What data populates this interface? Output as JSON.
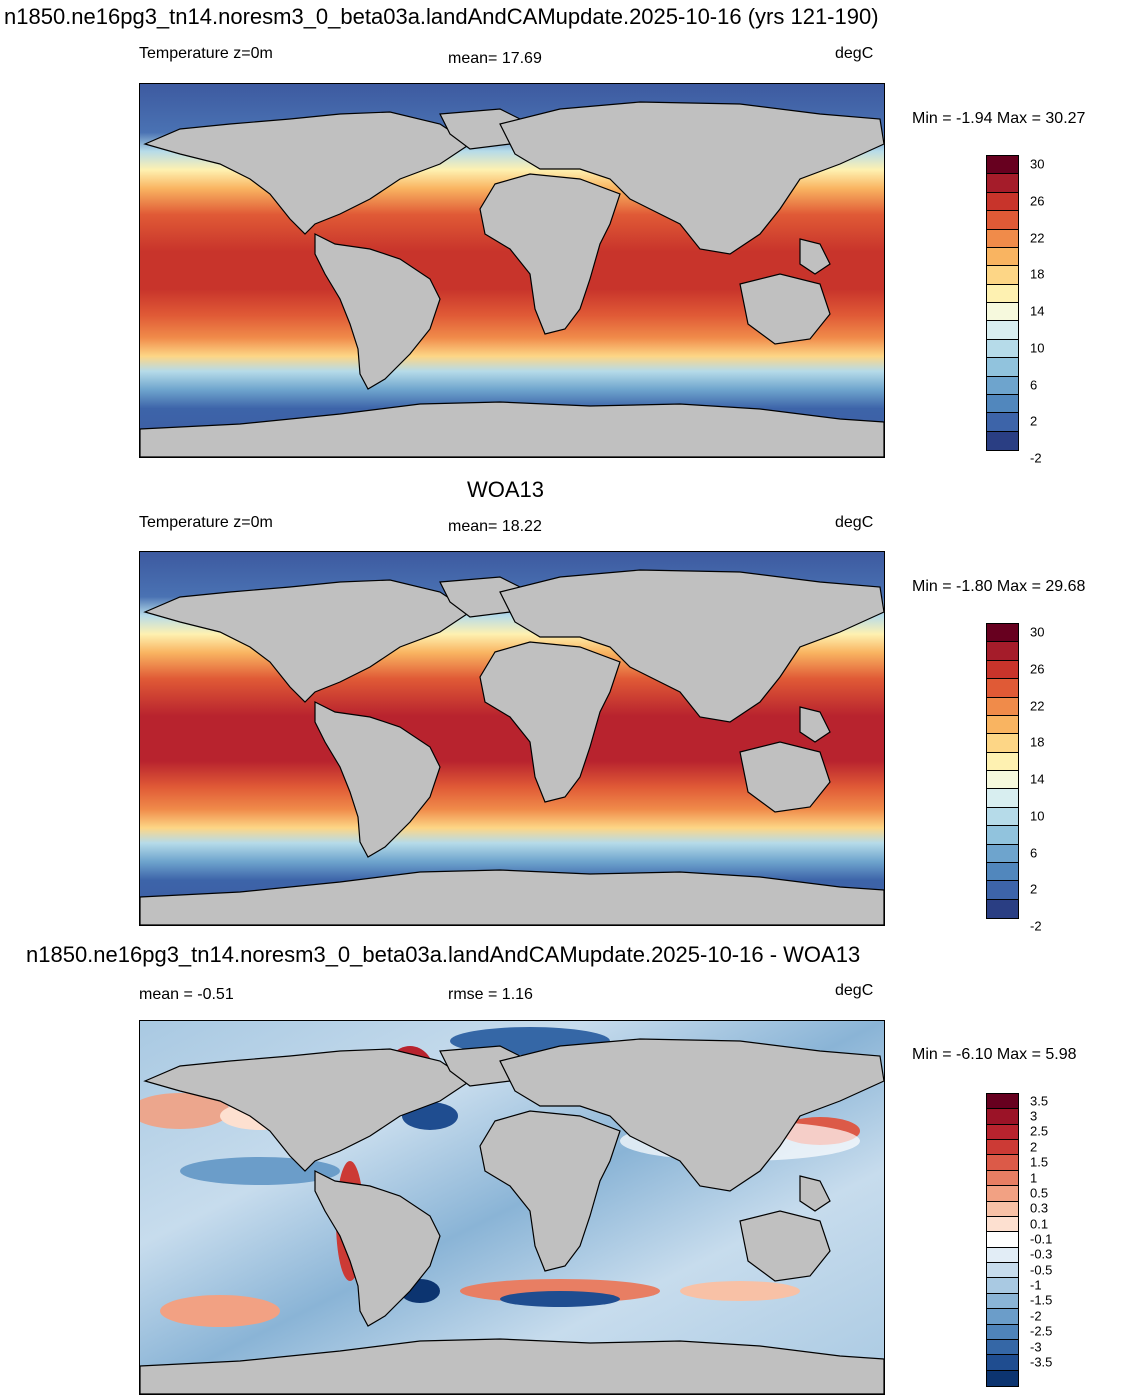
{
  "figure_title": "n1850.ne16pg3_tn14.noresm3_0_beta03a.landAndCAMupdate.2025-10-16 (yrs 121-190)",
  "panel1": {
    "var_label": "Temperature z=0m",
    "mean_label": "mean=  17.69",
    "units": "degC",
    "minmax": "Min =  -1.94 Max =  30.27"
  },
  "panel2": {
    "title": "WOA13",
    "var_label": "Temperature z=0m",
    "mean_label": "mean=  18.22",
    "units": "degC",
    "minmax": "Min =  -1.80 Max =  29.68"
  },
  "panel3": {
    "title": "n1850.ne16pg3_tn14.noresm3_0_beta03a.landAndCAMupdate.2025-10-16 - WOA13",
    "mean_label": "mean =  -0.51",
    "rmse_label": "rmse =   1.16",
    "units": "degC",
    "minmax": "Min =  -6.10 Max =   5.98"
  },
  "colorbar_temp": {
    "labels": [
      "30",
      "26",
      "22",
      "18",
      "14",
      "10",
      "6",
      "2",
      "-2"
    ],
    "colors": [
      "#67001f",
      "#a51c2a",
      "#c8342b",
      "#e05a36",
      "#f08b4a",
      "#f9b461",
      "#fdd686",
      "#fef1b1",
      "#f6f9dd",
      "#d8eef0",
      "#b6dbe9",
      "#91c3dd",
      "#6ea4cd",
      "#5187bd",
      "#3d64a9",
      "#2a3e83"
    ]
  },
  "colorbar_diff": {
    "labels": [
      "3.5",
      "3",
      "2.5",
      "2",
      "1.5",
      "1",
      "0.5",
      "0.3",
      "0.1",
      "-0.1",
      "-0.3",
      "-0.5",
      "-1",
      "-1.5",
      "-2",
      "-2.5",
      "-3",
      "-3.5"
    ],
    "colors": [
      "#67001f",
      "#9b1327",
      "#b8232e",
      "#cc3a35",
      "#dc5a48",
      "#e87e63",
      "#f2a183",
      "#f8c1a6",
      "#fde0d0",
      "#ffffff",
      "#e2edf6",
      "#c7dced",
      "#a9c9e2",
      "#8ab4d6",
      "#6b9dc9",
      "#4f84ba",
      "#3567a6",
      "#1f4d90",
      "#0c3470"
    ]
  },
  "colors": {
    "land": "#c0c0c0",
    "antarctic_ocean": "#3d5aa0",
    "arctic_ocean": "#3e5ca2",
    "equator_warm": "#c8342b",
    "mid_lat": "#fde9a0"
  }
}
